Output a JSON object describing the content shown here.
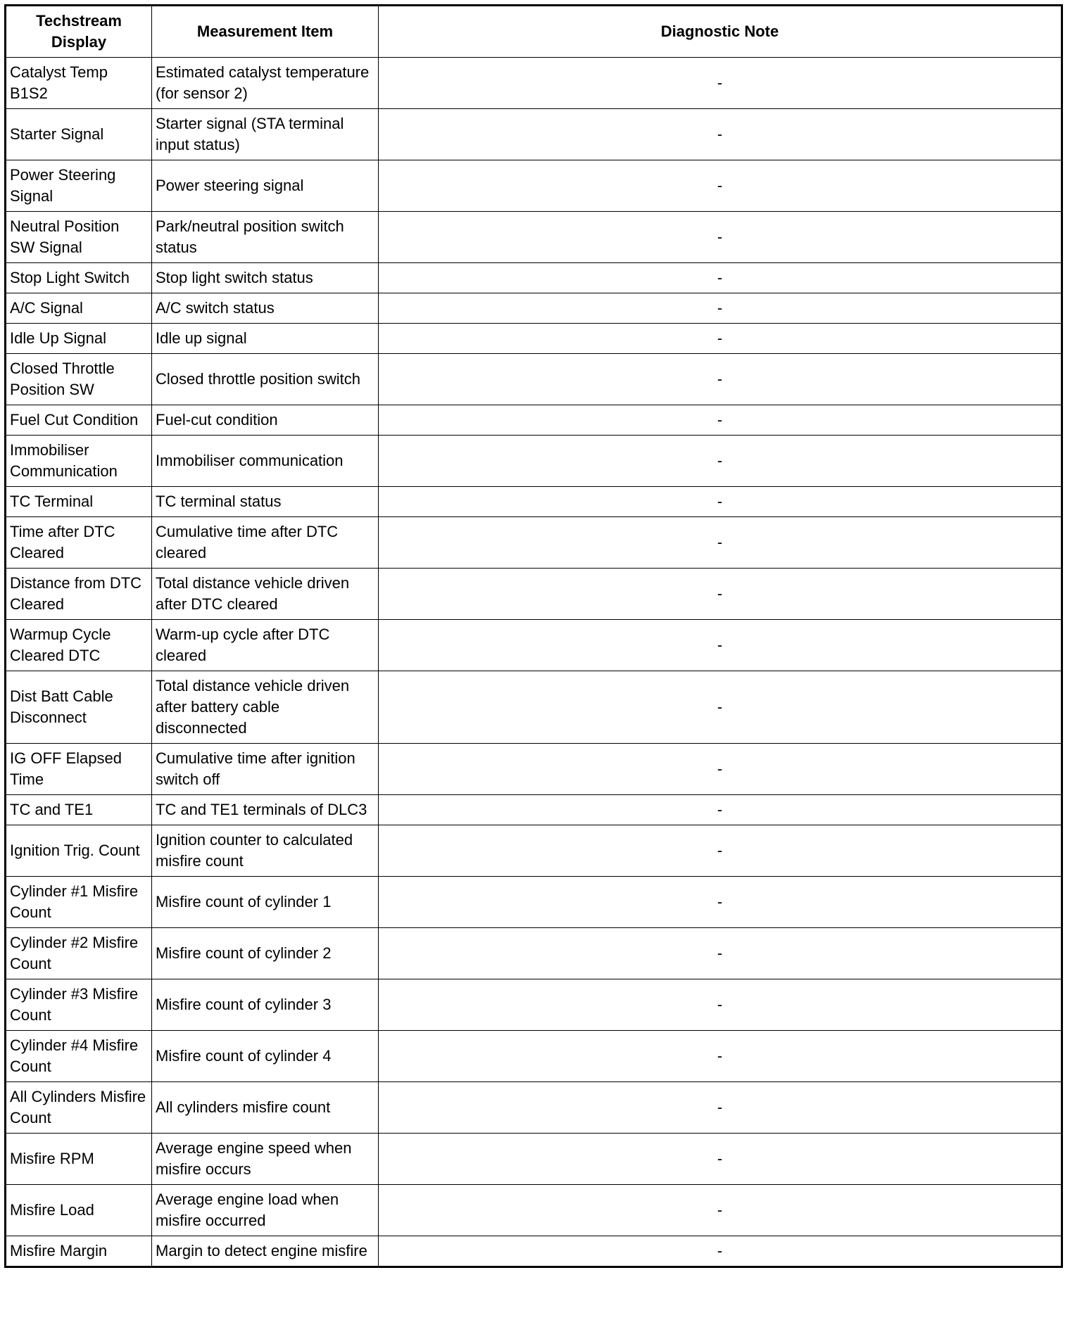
{
  "headers": [
    "Techstream Display",
    "Measurement Item",
    "Diagnostic Note"
  ],
  "rows": [
    [
      "Catalyst Temp B1S2",
      "Estimated catalyst temperature (for sensor 2)",
      "-"
    ],
    [
      "Starter Signal",
      "Starter signal (STA terminal input status)",
      "-"
    ],
    [
      "Power Steering Signal",
      "Power steering signal",
      "-"
    ],
    [
      "Neutral Position SW Signal",
      "Park/neutral position switch status",
      "-"
    ],
    [
      "Stop Light Switch",
      "Stop light switch status",
      "-"
    ],
    [
      "A/C Signal",
      "A/C switch status",
      "-"
    ],
    [
      "Idle Up Signal",
      "Idle up signal",
      "-"
    ],
    [
      "Closed Throttle Position SW",
      "Closed throttle position switch",
      "-"
    ],
    [
      "Fuel Cut Condition",
      "Fuel-cut condition",
      "-"
    ],
    [
      "Immobiliser Communication",
      "Immobiliser communication",
      "-"
    ],
    [
      "TC Terminal",
      "TC terminal status",
      "-"
    ],
    [
      "Time after DTC Cleared",
      "Cumulative time after DTC cleared",
      "-"
    ],
    [
      "Distance from DTC Cleared",
      "Total distance vehicle driven after DTC cleared",
      "-"
    ],
    [
      "Warmup Cycle Cleared DTC",
      "Warm-up cycle after DTC cleared",
      "-"
    ],
    [
      "Dist Batt Cable Disconnect",
      "Total distance vehicle driven after battery cable disconnected",
      "-"
    ],
    [
      "IG OFF Elapsed Time",
      "Cumulative time after ignition switch off",
      "-"
    ],
    [
      "TC and TE1",
      "TC and TE1 terminals of DLC3",
      "-"
    ],
    [
      "Ignition Trig. Count",
      "Ignition counter to calculated misfire count",
      "-"
    ],
    [
      "Cylinder #1 Misfire Count",
      "Misfire count of cylinder 1",
      "-"
    ],
    [
      "Cylinder #2 Misfire Count",
      "Misfire count of cylinder 2",
      "-"
    ],
    [
      "Cylinder #3 Misfire Count",
      "Misfire count of cylinder 3",
      "-"
    ],
    [
      "Cylinder #4 Misfire Count",
      "Misfire count of cylinder 4",
      "-"
    ],
    [
      "All Cylinders Misfire Count",
      "All cylinders misfire count",
      "-"
    ],
    [
      "Misfire RPM",
      "Average engine speed when misfire occurs",
      "-"
    ],
    [
      "Misfire Load",
      "Average engine load when misfire occurred",
      "-"
    ],
    [
      "Misfire Margin",
      "Margin to detect engine misfire",
      "-"
    ]
  ]
}
